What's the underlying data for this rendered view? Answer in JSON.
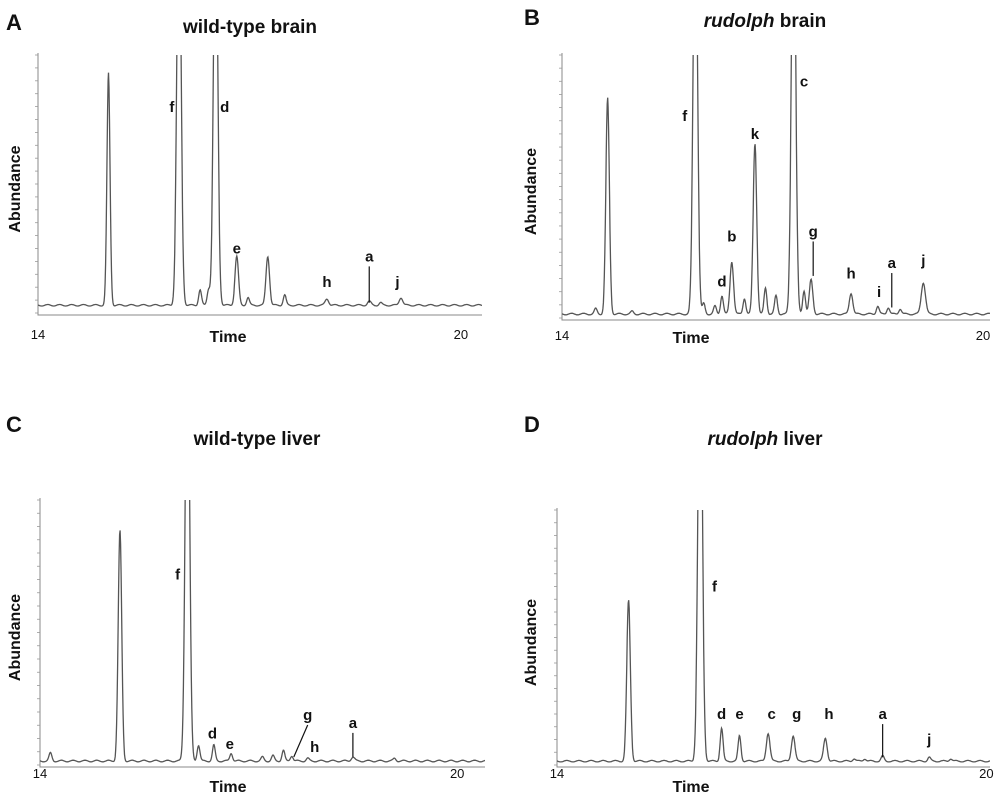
{
  "chart_data": [
    {
      "type": "line",
      "letter": "A",
      "title_plain": "wild-type brain",
      "title_italic": "",
      "xlabel": "Time",
      "ylabel": "Abundance",
      "xlim": [
        14,
        20.3
      ],
      "ylim": [
        0,
        100
      ],
      "x_ticks": [
        "14",
        "20"
      ],
      "baseline": 3,
      "peaks": [
        {
          "x": 15.0,
          "h": 90,
          "w": 0.022
        },
        {
          "x": 16.0,
          "h": 160,
          "w": 0.03
        },
        {
          "x": 16.3,
          "h": 6,
          "w": 0.02
        },
        {
          "x": 16.42,
          "h": 6,
          "w": 0.02
        },
        {
          "x": 16.52,
          "h": 160,
          "w": 0.03
        },
        {
          "x": 16.82,
          "h": 19,
          "w": 0.025
        },
        {
          "x": 16.98,
          "h": 3,
          "w": 0.02
        },
        {
          "x": 17.26,
          "h": 19,
          "w": 0.025
        },
        {
          "x": 17.5,
          "h": 4,
          "w": 0.02
        },
        {
          "x": 18.1,
          "h": 2.5,
          "w": 0.025
        },
        {
          "x": 18.7,
          "h": 1.5,
          "w": 0.025
        },
        {
          "x": 18.86,
          "h": 1,
          "w": 0.02
        },
        {
          "x": 19.15,
          "h": 3,
          "w": 0.025
        }
      ],
      "labels": [
        {
          "text": "f",
          "x": 15.9,
          "y": 78
        },
        {
          "text": "d",
          "x": 16.65,
          "y": 78
        },
        {
          "text": "e",
          "x": 16.82,
          "y": 23,
          "leader": false
        },
        {
          "text": "h",
          "x": 18.1,
          "y": 10
        },
        {
          "text": "a",
          "x": 18.7,
          "y": 20,
          "leader": true,
          "leader_to": 4
        },
        {
          "text": "j",
          "x": 19.1,
          "y": 10
        }
      ]
    },
    {
      "type": "line",
      "letter": "B",
      "title_plain": " brain",
      "title_italic": "rudolph",
      "xlabel": "Time",
      "ylabel": "Abundance",
      "xlim": [
        14,
        20.1
      ],
      "ylim": [
        0,
        100
      ],
      "x_ticks": [
        "14",
        "20"
      ],
      "baseline": 1.5,
      "peaks": [
        {
          "x": 14.48,
          "h": 2,
          "w": 0.02
        },
        {
          "x": 14.65,
          "h": 82,
          "w": 0.025
        },
        {
          "x": 15.0,
          "h": 1,
          "w": 0.02
        },
        {
          "x": 15.9,
          "h": 170,
          "w": 0.03
        },
        {
          "x": 16.02,
          "h": 4,
          "w": 0.02
        },
        {
          "x": 16.18,
          "h": 3,
          "w": 0.02
        },
        {
          "x": 16.28,
          "h": 7,
          "w": 0.02
        },
        {
          "x": 16.42,
          "h": 20,
          "w": 0.025
        },
        {
          "x": 16.6,
          "h": 6,
          "w": 0.02
        },
        {
          "x": 16.75,
          "h": 65,
          "w": 0.025
        },
        {
          "x": 16.9,
          "h": 10,
          "w": 0.02
        },
        {
          "x": 17.05,
          "h": 7,
          "w": 0.02
        },
        {
          "x": 17.3,
          "h": 170,
          "w": 0.03
        },
        {
          "x": 17.45,
          "h": 9,
          "w": 0.02
        },
        {
          "x": 17.55,
          "h": 13,
          "w": 0.025
        },
        {
          "x": 18.12,
          "h": 8,
          "w": 0.025
        },
        {
          "x": 18.5,
          "h": 3,
          "w": 0.02
        },
        {
          "x": 18.65,
          "h": 2.5,
          "w": 0.02
        },
        {
          "x": 18.82,
          "h": 2,
          "w": 0.02
        },
        {
          "x": 19.15,
          "h": 12,
          "w": 0.03
        }
      ],
      "labels": [
        {
          "text": "f",
          "x": 15.75,
          "y": 75
        },
        {
          "text": "d",
          "x": 16.28,
          "y": 12
        },
        {
          "text": "b",
          "x": 16.42,
          "y": 29
        },
        {
          "text": "k",
          "x": 16.75,
          "y": 68
        },
        {
          "text": "c",
          "x": 17.45,
          "y": 88
        },
        {
          "text": "g",
          "x": 17.58,
          "y": 31,
          "leader": true,
          "leader_to": 16
        },
        {
          "text": "h",
          "x": 18.12,
          "y": 15
        },
        {
          "text": "i",
          "x": 18.52,
          "y": 8
        },
        {
          "text": "a",
          "x": 18.7,
          "y": 19,
          "leader": true,
          "leader_to": 4
        },
        {
          "text": "j",
          "x": 19.15,
          "y": 20
        }
      ]
    },
    {
      "type": "line",
      "letter": "C",
      "title_plain": "wild-type liver",
      "title_italic": "",
      "xlabel": "Time",
      "ylabel": "Abundance",
      "xlim": [
        14,
        20.4
      ],
      "ylim": [
        0,
        100
      ],
      "x_ticks": [
        "14",
        "20"
      ],
      "baseline": 1.5,
      "peaks": [
        {
          "x": 14.15,
          "h": 3,
          "w": 0.02
        },
        {
          "x": 15.15,
          "h": 87,
          "w": 0.025
        },
        {
          "x": 16.12,
          "h": 180,
          "w": 0.03
        },
        {
          "x": 16.28,
          "h": 6,
          "w": 0.02
        },
        {
          "x": 16.5,
          "h": 6,
          "w": 0.02
        },
        {
          "x": 16.75,
          "h": 3,
          "w": 0.02
        },
        {
          "x": 17.2,
          "h": 1.5,
          "w": 0.02
        },
        {
          "x": 17.35,
          "h": 2,
          "w": 0.02
        },
        {
          "x": 17.5,
          "h": 4,
          "w": 0.02
        },
        {
          "x": 17.62,
          "h": 2,
          "w": 0.02
        },
        {
          "x": 17.85,
          "h": 1,
          "w": 0.02
        },
        {
          "x": 18.5,
          "h": 1.5,
          "w": 0.025
        },
        {
          "x": 19.1,
          "h": 1,
          "w": 0.02
        }
      ],
      "labels": [
        {
          "text": "f",
          "x": 15.98,
          "y": 70
        },
        {
          "text": "d",
          "x": 16.48,
          "y": 10
        },
        {
          "text": "e",
          "x": 16.73,
          "y": 6
        },
        {
          "text": "g",
          "x": 17.85,
          "y": 17,
          "leader": true,
          "leader_to": 3,
          "leader_dx": -0.2
        },
        {
          "text": "h",
          "x": 17.95,
          "y": 5
        },
        {
          "text": "a",
          "x": 18.5,
          "y": 14,
          "leader": true,
          "leader_to": 3
        }
      ]
    },
    {
      "type": "line",
      "letter": "D",
      "title_plain": " liver",
      "title_italic": "rudolph",
      "xlabel": "Time",
      "ylabel": "Abundance",
      "xlim": [
        14,
        20.05
      ],
      "ylim": [
        0,
        100
      ],
      "x_ticks": [
        "14",
        "20"
      ],
      "baseline": 1.5,
      "peaks": [
        {
          "x": 15.0,
          "h": 63,
          "w": 0.025
        },
        {
          "x": 16.0,
          "h": 180,
          "w": 0.03
        },
        {
          "x": 16.3,
          "h": 13,
          "w": 0.02
        },
        {
          "x": 16.55,
          "h": 10,
          "w": 0.02
        },
        {
          "x": 16.95,
          "h": 11,
          "w": 0.025
        },
        {
          "x": 17.3,
          "h": 10,
          "w": 0.025
        },
        {
          "x": 17.75,
          "h": 9,
          "w": 0.025
        },
        {
          "x": 18.15,
          "h": 1,
          "w": 0.02
        },
        {
          "x": 18.3,
          "h": 1,
          "w": 0.02
        },
        {
          "x": 18.55,
          "h": 2,
          "w": 0.02
        },
        {
          "x": 19.2,
          "h": 1.5,
          "w": 0.02
        },
        {
          "x": 19.5,
          "h": 1,
          "w": 0.02
        }
      ],
      "labels": [
        {
          "text": "f",
          "x": 16.2,
          "y": 68
        },
        {
          "text": "d",
          "x": 16.3,
          "y": 18
        },
        {
          "text": "e",
          "x": 16.55,
          "y": 18
        },
        {
          "text": "c",
          "x": 17.0,
          "y": 18
        },
        {
          "text": "g",
          "x": 17.35,
          "y": 18
        },
        {
          "text": "h",
          "x": 17.8,
          "y": 18
        },
        {
          "text": "a",
          "x": 18.55,
          "y": 18,
          "leader": true,
          "leader_to": 3
        },
        {
          "text": "j",
          "x": 19.2,
          "y": 8
        }
      ]
    }
  ]
}
